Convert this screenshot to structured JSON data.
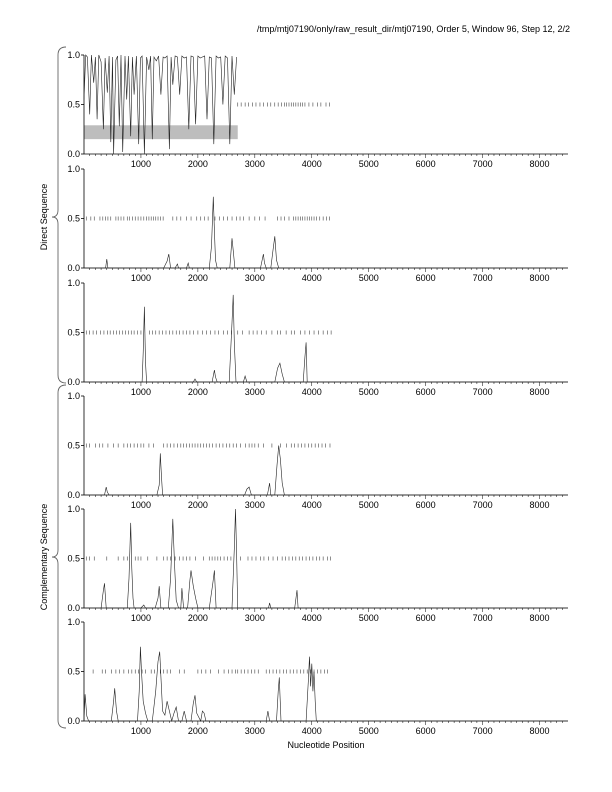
{
  "title": "/tmp/mtj07190/only/raw_result_dir/mtj07190, Order 5, Window 96, Step 12, 2/2",
  "xlabel": "Nucleotide Position",
  "group_labels": [
    "Direct Sequence",
    "Complementary Sequence"
  ],
  "chart_data": [
    {
      "type": "line",
      "panel": 1,
      "xlim": [
        0,
        8500
      ],
      "ylim": [
        0,
        1
      ],
      "x_ticks": [
        1000,
        2000,
        3000,
        4000,
        5000,
        6000,
        7000,
        8000
      ],
      "y_ticks": [
        0.0,
        0.5,
        1.0
      ],
      "y_tick_labels": [
        "0.0",
        "0.5",
        "1.0"
      ],
      "highlight_band": {
        "x": [
          0,
          2700
        ],
        "y": [
          0.15,
          0.29
        ],
        "color": "#bdbdbd"
      },
      "series": [
        {
          "x": [
            0,
            30,
            60,
            100,
            130,
            170,
            200,
            230,
            260,
            300,
            340,
            370,
            410,
            440,
            470,
            500,
            520,
            560,
            590,
            620,
            650,
            680,
            720,
            750,
            780,
            820,
            850,
            880,
            920,
            960,
            990,
            1020,
            1060,
            1100,
            1140,
            1170,
            1200,
            1230,
            1270,
            1310,
            1350,
            1390,
            1420,
            1460,
            1500,
            1530,
            1560,
            1600,
            1640,
            1680,
            1720,
            1760,
            1800,
            1840,
            1880,
            1920,
            1960,
            2000,
            2040,
            2080,
            2120,
            2160,
            2200,
            2240,
            2280,
            2320,
            2360,
            2400,
            2440,
            2480,
            2520,
            2560,
            2600,
            2640,
            2680
          ],
          "y": [
            0.55,
            1.0,
            0.98,
            0.4,
            1.0,
            0.72,
            0.98,
            0.35,
            1.0,
            0.93,
            0.25,
            0.97,
            0.62,
            0.99,
            0.12,
            0.98,
            0.0,
            0.95,
            0.99,
            0.28,
            1.0,
            0.02,
            0.99,
            0.55,
            0.99,
            0.18,
            0.98,
            0.6,
            0.99,
            0.1,
            0.97,
            0.99,
            0.0,
            0.98,
            0.85,
            0.99,
            0.15,
            0.98,
            0.94,
            0.99,
            0.6,
            0.98,
            0.97,
            0.99,
            0.05,
            0.98,
            0.7,
            0.99,
            0.98,
            0.6,
            0.99,
            0.97,
            0.98,
            0.25,
            0.99,
            0.98,
            0.3,
            0.99,
            0.97,
            0.98,
            0.99,
            0.35,
            0.98,
            0.97,
            0.1,
            0.99,
            0.97,
            0.98,
            0.5,
            0.99,
            0.97,
            0.1,
            0.99,
            0.6,
            0.98
          ]
        }
      ],
      "marker_ticks": [
        2700,
        2760,
        2830,
        2890,
        2960,
        3020,
        3090,
        3150,
        3220,
        3280,
        3350,
        3410,
        3470,
        3520,
        3560,
        3600,
        3640,
        3680,
        3720,
        3760,
        3800,
        3840,
        3880,
        3950,
        4020,
        4100,
        4160,
        4250,
        4310
      ]
    },
    {
      "type": "line",
      "panel": 2,
      "xlim": [
        0,
        8500
      ],
      "ylim": [
        0,
        1
      ],
      "x_ticks": [
        1000,
        2000,
        3000,
        4000,
        5000,
        6000,
        7000,
        8000
      ],
      "y_ticks": [
        0.0,
        0.5,
        1.0
      ],
      "y_tick_labels": [
        "0.0",
        "0.5",
        "1.0"
      ],
      "series": [
        {
          "x": [
            0,
            380,
            400,
            420,
            1400,
            1460,
            1490,
            1520,
            1600,
            1640,
            1660,
            1800,
            1830,
            1850,
            2200,
            2240,
            2270,
            2290,
            2310,
            2340,
            2560,
            2600,
            2620,
            2650,
            3100,
            3150,
            3170,
            3200,
            3280,
            3320,
            3350,
            3380,
            3420,
            8500
          ],
          "y": [
            0.0,
            0.0,
            0.09,
            0.0,
            0.0,
            0.07,
            0.14,
            0.0,
            0.0,
            0.04,
            0.0,
            0.0,
            0.05,
            0.0,
            0.0,
            0.22,
            0.72,
            0.38,
            0.08,
            0.0,
            0.0,
            0.3,
            0.18,
            0.0,
            0.0,
            0.14,
            0.05,
            0.0,
            0.0,
            0.18,
            0.32,
            0.08,
            0.0,
            0.0
          ]
        }
      ],
      "marker_ticks": [
        40,
        120,
        180,
        280,
        330,
        380,
        420,
        470,
        560,
        600,
        650,
        700,
        760,
        800,
        850,
        900,
        950,
        1000,
        1050,
        1100,
        1140,
        1180,
        1220,
        1260,
        1300,
        1340,
        1390,
        1560,
        1630,
        1700,
        1800,
        1880,
        1980,
        2050,
        2120,
        2180,
        2300,
        2380,
        2450,
        2520,
        2600,
        2680,
        2740,
        2800,
        2900,
        3000,
        3080,
        3180,
        3400,
        3460,
        3520,
        3600,
        3680,
        3720,
        3760,
        3800,
        3840,
        3880,
        3920,
        3960,
        4000,
        4040,
        4080,
        4140,
        4200,
        4260,
        4310
      ]
    },
    {
      "type": "line",
      "panel": 3,
      "xlim": [
        0,
        8500
      ],
      "ylim": [
        0,
        1
      ],
      "x_ticks": [
        1000,
        2000,
        3000,
        4000,
        5000,
        6000,
        7000,
        8000
      ],
      "y_ticks": [
        0.0,
        0.5,
        1.0
      ],
      "y_tick_labels": [
        "0.0",
        "0.5",
        "1.0"
      ],
      "series": [
        {
          "x": [
            0,
            1020,
            1040,
            1060,
            1080,
            1100,
            1920,
            1950,
            1980,
            2250,
            2290,
            2310,
            2340,
            2550,
            2600,
            2620,
            2640,
            2670,
            2800,
            2830,
            2860,
            3350,
            3400,
            3440,
            3480,
            3520,
            3850,
            3880,
            3900,
            3920,
            8500
          ],
          "y": [
            0.0,
            0.0,
            0.3,
            0.76,
            0.2,
            0.0,
            0.0,
            0.03,
            0.0,
            0.0,
            0.12,
            0.05,
            0.0,
            0.0,
            0.6,
            0.88,
            0.4,
            0.0,
            0.0,
            0.06,
            0.0,
            0.0,
            0.14,
            0.19,
            0.08,
            0.0,
            0.0,
            0.25,
            0.4,
            0.0,
            0.0
          ]
        }
      ],
      "marker_ticks": [
        40,
        100,
        160,
        220,
        290,
        350,
        410,
        460,
        520,
        570,
        620,
        680,
        730,
        780,
        830,
        880,
        940,
        1000,
        1150,
        1200,
        1260,
        1320,
        1380,
        1440,
        1500,
        1560,
        1620,
        1680,
        1740,
        1800,
        1860,
        1920,
        2000,
        2080,
        2150,
        2220,
        2300,
        2360,
        2450,
        2520,
        2590,
        2700,
        2780,
        2900,
        2970,
        3040,
        3120,
        3200,
        3300,
        3400,
        3450,
        3550,
        3640,
        3700,
        3800,
        3880,
        3960,
        4040,
        4120,
        4200,
        4280,
        4340
      ]
    },
    {
      "type": "line",
      "panel": 4,
      "xlim": [
        0,
        8500
      ],
      "ylim": [
        0,
        1
      ],
      "x_ticks": [
        1000,
        2000,
        3000,
        4000,
        5000,
        6000,
        7000,
        8000
      ],
      "y_ticks": [
        0.0,
        0.5,
        1.0
      ],
      "y_tick_labels": [
        "0.0",
        "0.5",
        "1.0"
      ],
      "series": [
        {
          "x": [
            0,
            360,
            390,
            410,
            440,
            1280,
            1320,
            1340,
            1360,
            1380,
            2820,
            2860,
            2900,
            2940,
            3220,
            3260,
            3280,
            3350,
            3390,
            3420,
            3450,
            3480,
            3520,
            8500
          ],
          "y": [
            0.0,
            0.0,
            0.08,
            0.03,
            0.0,
            0.0,
            0.1,
            0.42,
            0.2,
            0.0,
            0.0,
            0.06,
            0.08,
            0.0,
            0.0,
            0.12,
            0.0,
            0.0,
            0.3,
            0.5,
            0.36,
            0.12,
            0.0,
            0.0
          ]
        }
      ],
      "marker_ticks": [
        40,
        100,
        200,
        270,
        330,
        420,
        520,
        600,
        700,
        760,
        820,
        880,
        940,
        1000,
        1050,
        1140,
        1220,
        1400,
        1460,
        1520,
        1580,
        1640,
        1700,
        1750,
        1800,
        1850,
        1900,
        1950,
        2000,
        2050,
        2100,
        2150,
        2200,
        2260,
        2320,
        2380,
        2440,
        2500,
        2560,
        2620,
        2680,
        2750,
        2840,
        2900,
        2950,
        3000,
        3060,
        3150,
        3300,
        3450,
        3560,
        3640,
        3700,
        3760,
        3820,
        3880,
        3940,
        4000,
        4060,
        4120,
        4180,
        4240,
        4320
      ]
    },
    {
      "type": "line",
      "panel": 5,
      "xlim": [
        0,
        8500
      ],
      "ylim": [
        0,
        1
      ],
      "x_ticks": [
        1000,
        2000,
        3000,
        4000,
        5000,
        6000,
        7000,
        8000
      ],
      "y_ticks": [
        0.0,
        0.5,
        1.0
      ],
      "y_tick_labels": [
        "0.0",
        "0.5",
        "1.0"
      ],
      "series": [
        {
          "x": [
            0,
            300,
            340,
            360,
            390,
            760,
            790,
            820,
            840,
            860,
            880,
            1000,
            1050,
            1080,
            1250,
            1300,
            1320,
            1350,
            1480,
            1520,
            1560,
            1590,
            1620,
            1660,
            1700,
            1720,
            1750,
            1820,
            1860,
            1880,
            1920,
            1960,
            2000,
            2200,
            2260,
            2290,
            2320,
            2600,
            2640,
            2660,
            2680,
            2700,
            3240,
            3260,
            3280,
            3700,
            3740,
            3760,
            8500
          ],
          "y": [
            0.0,
            0.0,
            0.18,
            0.25,
            0.0,
            0.0,
            0.3,
            0.86,
            0.4,
            0.1,
            0.0,
            0.0,
            0.03,
            0.0,
            0.0,
            0.1,
            0.22,
            0.0,
            0.0,
            0.3,
            0.9,
            0.45,
            0.08,
            0.0,
            0.0,
            0.2,
            0.0,
            0.0,
            0.28,
            0.38,
            0.22,
            0.1,
            0.0,
            0.0,
            0.24,
            0.38,
            0.0,
            0.0,
            0.6,
            1.0,
            0.55,
            0.0,
            0.0,
            0.05,
            0.0,
            0.0,
            0.18,
            0.0,
            0.0
          ]
        }
      ],
      "marker_ticks": [
        40,
        100,
        180,
        400,
        600,
        700,
        760,
        900,
        950,
        1000,
        1120,
        1280,
        1400,
        1460,
        1520,
        1600,
        1680,
        1740,
        1800,
        1860,
        1960,
        2100,
        2200,
        2250,
        2300,
        2350,
        2400,
        2460,
        2520,
        2580,
        2750,
        2880,
        2950,
        3020,
        3100,
        3160,
        3240,
        3320,
        3400,
        3480,
        3540,
        3600,
        3660,
        3720,
        3780,
        3840,
        3900,
        3960,
        4020,
        4080,
        4140,
        4200,
        4280,
        4330
      ]
    },
    {
      "type": "line",
      "panel": 6,
      "xlim": [
        0,
        8500
      ],
      "ylim": [
        0,
        1
      ],
      "x_ticks": [
        1000,
        2000,
        3000,
        4000,
        5000,
        6000,
        7000,
        8000
      ],
      "y_ticks": [
        0.0,
        0.5,
        1.0
      ],
      "y_tick_labels": [
        "0.0",
        "0.5",
        "1.0"
      ],
      "series": [
        {
          "x": [
            0,
            20,
            50,
            80,
            110,
            480,
            520,
            540,
            570,
            600,
            940,
            970,
            990,
            1010,
            1040,
            1080,
            1120,
            1200,
            1260,
            1300,
            1330,
            1350,
            1380,
            1420,
            1460,
            1500,
            1540,
            1580,
            1620,
            1660,
            1720,
            1760,
            1800,
            1880,
            1920,
            1950,
            1980,
            2050,
            2080,
            2110,
            2140,
            3200,
            3230,
            3260,
            3380,
            3410,
            3430,
            3460,
            3900,
            3940,
            3960,
            3980,
            4000,
            4020,
            4040,
            4060,
            4080,
            8500
          ],
          "y": [
            0.0,
            0.27,
            0.05,
            0.0,
            0.0,
            0.0,
            0.2,
            0.33,
            0.1,
            0.0,
            0.0,
            0.3,
            0.75,
            0.5,
            0.2,
            0.08,
            0.0,
            0.0,
            0.3,
            0.6,
            0.7,
            0.45,
            0.1,
            0.06,
            0.2,
            0.1,
            0.0,
            0.08,
            0.14,
            0.0,
            0.0,
            0.1,
            0.0,
            0.0,
            0.18,
            0.26,
            0.08,
            0.0,
            0.1,
            0.08,
            0.0,
            0.0,
            0.1,
            0.0,
            0.0,
            0.3,
            0.44,
            0.0,
            0.0,
            0.4,
            0.65,
            0.35,
            0.58,
            0.3,
            0.5,
            0.2,
            0.0,
            0.0
          ]
        }
      ],
      "marker_ticks": [
        160,
        320,
        380,
        480,
        560,
        620,
        700,
        780,
        840,
        900,
        960,
        1020,
        1080,
        1180,
        1240,
        1340,
        1400,
        1460,
        1520,
        1680,
        1760,
        2000,
        2060,
        2140,
        2220,
        2360,
        2460,
        2540,
        2600,
        2660,
        2700,
        2760,
        2820,
        2880,
        2940,
        3000,
        3060,
        3200,
        3260,
        3320,
        3380,
        3440,
        3500,
        3560,
        3620,
        3680,
        3740,
        3800,
        3860,
        3920,
        3980,
        4040,
        4100,
        4160,
        4220,
        4280
      ]
    }
  ]
}
